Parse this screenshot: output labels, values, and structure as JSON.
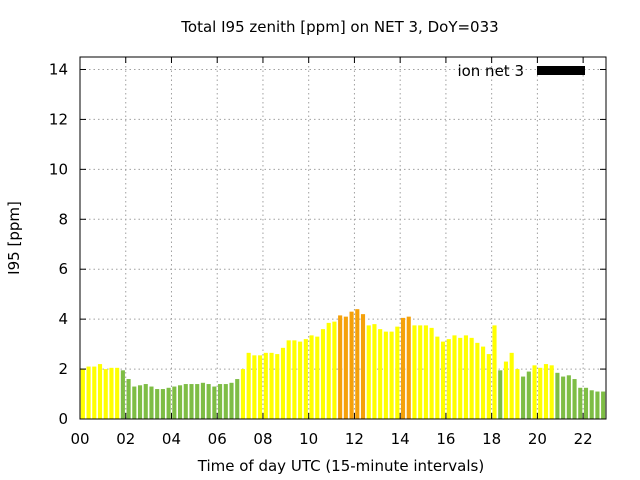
{
  "chart_data": {
    "type": "bar",
    "title": "Total I95 zenith [ppm] on NET 3, DoY=033",
    "xlabel": "Time of day UTC (15-minute intervals)",
    "ylabel": "I95 [ppm]",
    "xlim": [
      0,
      23
    ],
    "ylim": [
      0,
      14.5
    ],
    "xticks": [
      "00",
      "02",
      "04",
      "06",
      "08",
      "10",
      "12",
      "14",
      "16",
      "18",
      "20",
      "22"
    ],
    "yticks": [
      "0",
      "2",
      "4",
      "6",
      "8",
      "10",
      "12",
      "14"
    ],
    "grid": true,
    "legend": {
      "placement": "top-right",
      "label": "ion net 3",
      "color": "#000000"
    },
    "color_thresholds": {
      "green_below": 2.0,
      "yellow_below": 4.0
    },
    "colors": {
      "green": "#7ebd45",
      "yellow": "#ffff00",
      "orange": "#f5a10a"
    },
    "interval_hours": 0.25,
    "values": [
      2.0,
      2.1,
      2.1,
      2.2,
      2.0,
      2.05,
      2.05,
      1.95,
      1.6,
      1.3,
      1.35,
      1.4,
      1.3,
      1.2,
      1.2,
      1.25,
      1.3,
      1.35,
      1.4,
      1.4,
      1.4,
      1.45,
      1.4,
      1.3,
      1.4,
      1.4,
      1.45,
      1.6,
      2.0,
      2.65,
      2.55,
      2.55,
      2.65,
      2.65,
      2.6,
      2.85,
      3.15,
      3.15,
      3.1,
      3.2,
      3.35,
      3.3,
      3.6,
      3.85,
      3.9,
      4.15,
      4.1,
      4.3,
      4.4,
      4.2,
      3.75,
      3.8,
      3.6,
      3.5,
      3.5,
      3.7,
      4.05,
      4.1,
      3.75,
      3.75,
      3.75,
      3.65,
      3.3,
      3.1,
      3.2,
      3.35,
      3.25,
      3.35,
      3.25,
      3.05,
      2.9,
      2.6,
      3.75,
      1.95,
      2.3,
      2.65,
      2.0,
      1.7,
      1.9,
      2.15,
      2.05,
      2.2,
      2.15,
      1.85,
      1.7,
      1.75,
      1.6,
      1.25,
      1.25,
      1.15,
      1.1,
      1.1
    ]
  }
}
